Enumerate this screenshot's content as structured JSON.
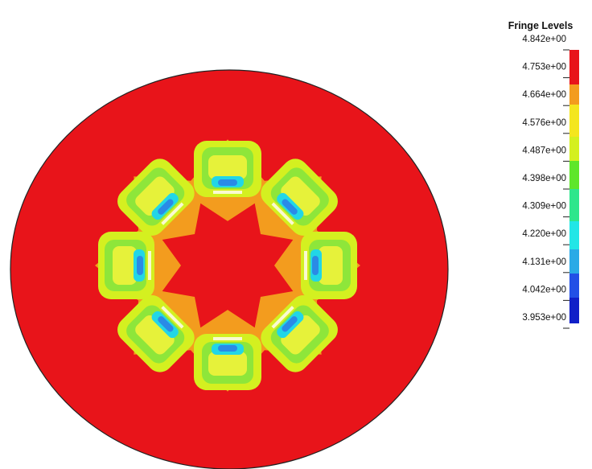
{
  "legend": {
    "title": "Fringe Levels",
    "levels": [
      "4.842e+00",
      "4.753e+00",
      "4.664e+00",
      "4.576e+00",
      "4.487e+00",
      "4.398e+00",
      "4.309e+00",
      "4.220e+00",
      "4.131e+00",
      "4.042e+00",
      "3.953e+00"
    ]
  }
}
